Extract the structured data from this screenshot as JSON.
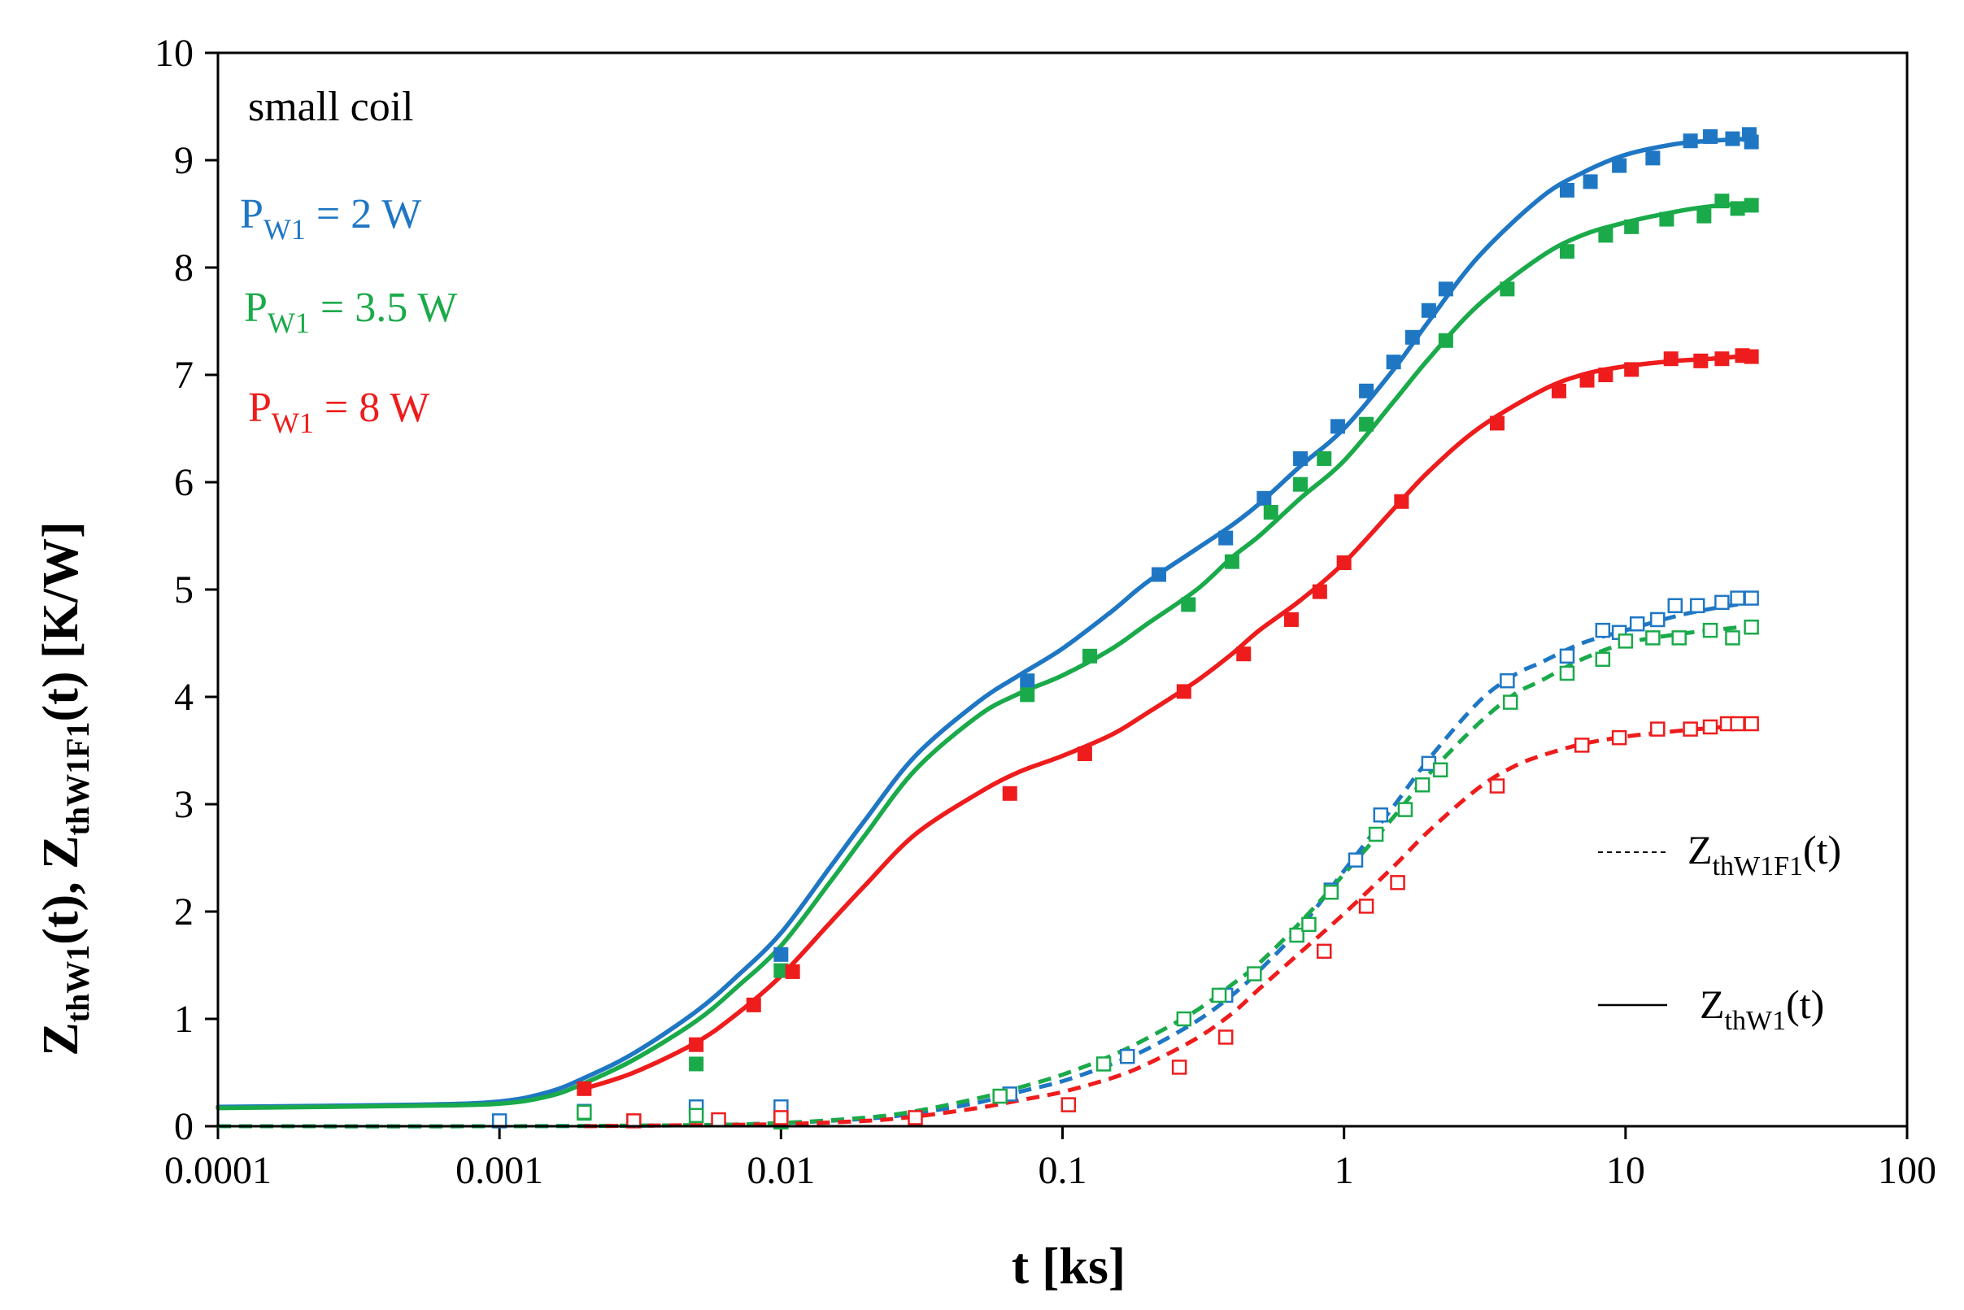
{
  "chart_data": {
    "type": "line",
    "xscale": "log",
    "xlim": [
      0.0001,
      100
    ],
    "ylim": [
      0,
      10
    ],
    "xlabel": "t [ks]",
    "ylabel": {
      "base1": "Z",
      "sub1": "thW1",
      "tail1": "(t), ",
      "base2": "Z",
      "sub2": "thW1F1",
      "tail2": "(t) [K/W]"
    },
    "x_ticks": [
      0.0001,
      0.001,
      0.01,
      0.1,
      1,
      10,
      100
    ],
    "x_tick_labels": [
      "0.0001",
      "0.001",
      "0.01",
      "0.1",
      "1",
      "10",
      "100"
    ],
    "y_ticks": [
      0,
      1,
      2,
      3,
      4,
      5,
      6,
      7,
      8,
      9,
      10
    ],
    "y_tick_labels": [
      "0",
      "1",
      "2",
      "3",
      "4",
      "5",
      "6",
      "7",
      "8",
      "9",
      "10"
    ],
    "annotations": {
      "title_note": "small coil",
      "powers": [
        {
          "base": "P",
          "sub": "W1",
          "rest": " = 2 W",
          "color": "#1f77c4"
        },
        {
          "base": "P",
          "sub": "W1",
          "rest": " = 3.5 W",
          "color": "#1aaa4a"
        },
        {
          "base": "P",
          "sub": "W1",
          "rest": " = 8 W",
          "color": "#ee1c1c"
        }
      ]
    },
    "legend": [
      {
        "style": "dashed",
        "base": "Z",
        "sub": "thW1F1",
        "rest": "(t)"
      },
      {
        "style": "solid",
        "base": "Z",
        "sub": "thW1",
        "rest": "(t)"
      }
    ],
    "series": [
      {
        "name": "ZthW1 P=2W",
        "kind": "curve",
        "style": "solid",
        "color": "#1f77c4",
        "x": [
          0.0001,
          0.0005,
          0.001,
          0.0015,
          0.002,
          0.003,
          0.005,
          0.007,
          0.01,
          0.015,
          0.02,
          0.03,
          0.05,
          0.07,
          0.1,
          0.15,
          0.2,
          0.3,
          0.4,
          0.5,
          0.7,
          1,
          1.5,
          2,
          3,
          5,
          7,
          10,
          15,
          20,
          28
        ],
        "y": [
          0.18,
          0.2,
          0.23,
          0.32,
          0.45,
          0.68,
          1.07,
          1.4,
          1.8,
          2.42,
          2.86,
          3.45,
          3.95,
          4.2,
          4.45,
          4.8,
          5.07,
          5.38,
          5.6,
          5.8,
          6.15,
          6.5,
          7.05,
          7.5,
          8.1,
          8.65,
          8.88,
          9.05,
          9.15,
          9.18,
          9.2
        ]
      },
      {
        "name": "ZthW1 P=3.5W",
        "kind": "curve",
        "style": "solid",
        "color": "#1aaa4a",
        "x": [
          0.0001,
          0.0005,
          0.001,
          0.0015,
          0.002,
          0.003,
          0.005,
          0.007,
          0.01,
          0.015,
          0.02,
          0.03,
          0.05,
          0.07,
          0.1,
          0.15,
          0.2,
          0.3,
          0.4,
          0.5,
          0.7,
          1,
          1.5,
          2,
          3,
          5,
          7,
          10,
          15,
          20,
          28
        ],
        "y": [
          0.17,
          0.19,
          0.21,
          0.28,
          0.4,
          0.62,
          0.98,
          1.3,
          1.68,
          2.28,
          2.72,
          3.32,
          3.82,
          4.03,
          4.2,
          4.45,
          4.68,
          5.0,
          5.3,
          5.5,
          5.85,
          6.2,
          6.75,
          7.15,
          7.65,
          8.1,
          8.3,
          8.42,
          8.52,
          8.57,
          8.6
        ]
      },
      {
        "name": "ZthW1 P=8W",
        "kind": "curve",
        "style": "solid",
        "color": "#ee1c1c",
        "x": [
          0.002,
          0.003,
          0.005,
          0.007,
          0.01,
          0.015,
          0.02,
          0.03,
          0.05,
          0.07,
          0.1,
          0.15,
          0.2,
          0.3,
          0.4,
          0.5,
          0.7,
          1,
          1.5,
          2,
          3,
          5,
          7,
          10,
          15,
          20,
          28
        ],
        "y": [
          0.35,
          0.5,
          0.78,
          1.05,
          1.4,
          1.9,
          2.25,
          2.72,
          3.1,
          3.3,
          3.45,
          3.65,
          3.85,
          4.15,
          4.4,
          4.62,
          4.9,
          5.25,
          5.75,
          6.1,
          6.5,
          6.85,
          7.0,
          7.08,
          7.13,
          7.15,
          7.18
        ]
      },
      {
        "name": "ZthW1F1 P=2W",
        "kind": "curve",
        "style": "dashed",
        "color": "#1f77c4",
        "x": [
          0.0001,
          0.001,
          0.005,
          0.01,
          0.02,
          0.03,
          0.05,
          0.07,
          0.1,
          0.15,
          0.2,
          0.3,
          0.4,
          0.5,
          0.7,
          1,
          1.5,
          2,
          3,
          4,
          5,
          7,
          10,
          15,
          20,
          28
        ],
        "y": [
          0.0,
          0.0,
          0.01,
          0.03,
          0.07,
          0.12,
          0.22,
          0.32,
          0.42,
          0.58,
          0.72,
          0.98,
          1.22,
          1.45,
          1.85,
          2.38,
          2.98,
          3.42,
          3.95,
          4.2,
          4.32,
          4.5,
          4.62,
          4.75,
          4.82,
          4.88
        ]
      },
      {
        "name": "ZthW1F1 P=3.5W",
        "kind": "curve",
        "style": "dashed",
        "color": "#1aaa4a",
        "x": [
          0.0001,
          0.001,
          0.005,
          0.01,
          0.02,
          0.03,
          0.05,
          0.07,
          0.1,
          0.15,
          0.2,
          0.3,
          0.4,
          0.5,
          0.7,
          1,
          1.5,
          2,
          3,
          4,
          5,
          7,
          10,
          15,
          20,
          28
        ],
        "y": [
          0.0,
          0.0,
          0.01,
          0.03,
          0.08,
          0.14,
          0.26,
          0.36,
          0.48,
          0.66,
          0.82,
          1.08,
          1.32,
          1.52,
          1.9,
          2.35,
          2.88,
          3.28,
          3.75,
          4.02,
          4.15,
          4.35,
          4.5,
          4.58,
          4.62,
          4.66
        ]
      },
      {
        "name": "ZthW1F1 P=8W",
        "kind": "curve",
        "style": "dashed",
        "color": "#ee1c1c",
        "x": [
          0.002,
          0.005,
          0.01,
          0.02,
          0.03,
          0.05,
          0.07,
          0.1,
          0.15,
          0.2,
          0.3,
          0.4,
          0.5,
          0.7,
          1,
          1.5,
          2,
          3,
          4,
          5,
          7,
          10,
          15,
          20,
          28
        ],
        "y": [
          0.0,
          0.01,
          0.02,
          0.05,
          0.09,
          0.17,
          0.24,
          0.32,
          0.45,
          0.58,
          0.82,
          1.05,
          1.28,
          1.62,
          1.98,
          2.42,
          2.75,
          3.15,
          3.35,
          3.45,
          3.56,
          3.63,
          3.68,
          3.71,
          3.74
        ]
      },
      {
        "name": "meas ZthW1 P=2W",
        "kind": "points",
        "marker": "filled",
        "color": "#1f77c4",
        "x": [
          0.002,
          0.01,
          0.075,
          0.22,
          0.38,
          0.52,
          0.7,
          0.95,
          1.2,
          1.5,
          1.75,
          2.0,
          2.3,
          6.2,
          7.5,
          9.5,
          12.5,
          17,
          20,
          24,
          27.5,
          28
        ],
        "y": [
          0.14,
          1.6,
          4.15,
          5.14,
          5.48,
          5.85,
          6.22,
          6.52,
          6.85,
          7.12,
          7.35,
          7.6,
          7.8,
          8.72,
          8.8,
          8.95,
          9.02,
          9.18,
          9.22,
          9.2,
          9.24,
          9.17
        ]
      },
      {
        "name": "meas ZthW1 P=3.5W",
        "kind": "points",
        "marker": "filled",
        "color": "#1aaa4a",
        "x": [
          0.002,
          0.005,
          0.01,
          0.075,
          0.125,
          0.28,
          0.4,
          0.55,
          0.7,
          0.85,
          1.2,
          2.3,
          3.8,
          6.2,
          8.5,
          10.5,
          14,
          19,
          22,
          25,
          28
        ],
        "y": [
          0.12,
          0.58,
          1.45,
          4.02,
          4.38,
          4.86,
          5.26,
          5.72,
          5.98,
          6.22,
          6.54,
          7.32,
          7.8,
          8.15,
          8.3,
          8.38,
          8.45,
          8.48,
          8.62,
          8.55,
          8.58
        ]
      },
      {
        "name": "meas ZthW1 P=8W",
        "kind": "points",
        "marker": "filled",
        "color": "#ee1c1c",
        "x": [
          0.002,
          0.005,
          0.008,
          0.011,
          0.065,
          0.12,
          0.27,
          0.44,
          0.65,
          0.82,
          1.0,
          1.6,
          3.5,
          5.8,
          7.3,
          8.5,
          10.5,
          14.5,
          18.5,
          22,
          26,
          28
        ],
        "y": [
          0.35,
          0.76,
          1.13,
          1.44,
          3.1,
          3.47,
          4.05,
          4.4,
          4.72,
          4.98,
          5.25,
          5.82,
          6.55,
          6.85,
          6.95,
          7.0,
          7.05,
          7.15,
          7.13,
          7.15,
          7.18,
          7.17
        ]
      },
      {
        "name": "meas ZthW1F1 P=2W",
        "kind": "points",
        "marker": "open",
        "color": "#1f77c4",
        "x": [
          0.001,
          0.005,
          0.01,
          0.065,
          0.17,
          0.38,
          0.9,
          1.1,
          1.35,
          2.0,
          3.8,
          6.2,
          8.3,
          9.5,
          11,
          13,
          15,
          18,
          22,
          25,
          28
        ],
        "y": [
          0.05,
          0.18,
          0.18,
          0.3,
          0.65,
          1.22,
          2.2,
          2.48,
          2.9,
          3.38,
          4.15,
          4.38,
          4.62,
          4.6,
          4.68,
          4.72,
          4.85,
          4.85,
          4.88,
          4.92,
          4.92
        ]
      },
      {
        "name": "meas ZthW1F1 P=3.5W",
        "kind": "points",
        "marker": "open",
        "color": "#1aaa4a",
        "x": [
          0.002,
          0.005,
          0.01,
          0.06,
          0.14,
          0.27,
          0.36,
          0.48,
          0.68,
          0.75,
          0.9,
          1.3,
          1.65,
          1.9,
          2.2,
          3.9,
          6.2,
          8.3,
          10,
          12.5,
          15.5,
          20,
          24,
          28
        ],
        "y": [
          0.13,
          0.1,
          0.04,
          0.28,
          0.58,
          1.0,
          1.22,
          1.42,
          1.78,
          1.88,
          2.18,
          2.72,
          2.95,
          3.18,
          3.32,
          3.95,
          4.22,
          4.35,
          4.52,
          4.55,
          4.55,
          4.62,
          4.55,
          4.65
        ]
      },
      {
        "name": "meas ZthW1F1 P=8W",
        "kind": "points",
        "marker": "open",
        "color": "#ee1c1c",
        "x": [
          0.003,
          0.006,
          0.01,
          0.03,
          0.105,
          0.26,
          0.38,
          0.85,
          1.2,
          1.55,
          3.5,
          7.0,
          9.5,
          13,
          17,
          20,
          23,
          25,
          28
        ],
        "y": [
          0.05,
          0.06,
          0.08,
          0.08,
          0.2,
          0.55,
          0.83,
          1.63,
          2.05,
          2.27,
          3.17,
          3.55,
          3.62,
          3.7,
          3.7,
          3.72,
          3.75,
          3.75,
          3.75
        ]
      }
    ]
  }
}
